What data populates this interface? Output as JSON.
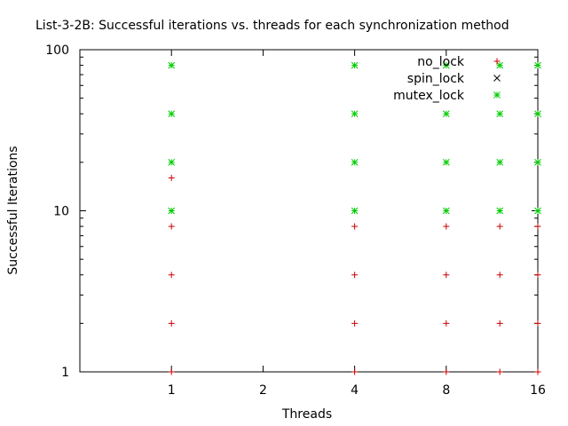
{
  "chart_data": {
    "type": "scatter",
    "title": "List-3-2B: Successful iterations vs. threads for each synchronization method",
    "xlabel": "Threads",
    "ylabel": "Successful Iterations",
    "x_scale": "log2",
    "y_scale": "log10",
    "xlim": [
      0.5,
      16
    ],
    "ylim": [
      1,
      100
    ],
    "xticks": [
      1,
      2,
      4,
      8,
      16
    ],
    "xtick_labels": [
      "1",
      "2",
      "4",
      "8",
      "16"
    ],
    "yticks": [
      1,
      10,
      100
    ],
    "ytick_labels": [
      "1",
      "10",
      "100"
    ],
    "grid": false,
    "legend_position": "top-right",
    "series": [
      {
        "name": "no_lock",
        "marker": "+",
        "color": "#cc0000",
        "points": [
          [
            1,
            1
          ],
          [
            1,
            2
          ],
          [
            1,
            4
          ],
          [
            1,
            8
          ],
          [
            1,
            16
          ],
          [
            4,
            1
          ],
          [
            4,
            2
          ],
          [
            4,
            4
          ],
          [
            4,
            8
          ],
          [
            8,
            1
          ],
          [
            8,
            2
          ],
          [
            8,
            4
          ],
          [
            8,
            8
          ],
          [
            12,
            1
          ],
          [
            12,
            2
          ],
          [
            12,
            4
          ],
          [
            12,
            8
          ],
          [
            16,
            1
          ],
          [
            16,
            2
          ],
          [
            16,
            4
          ],
          [
            16,
            8
          ]
        ]
      },
      {
        "name": "spin_lock",
        "marker": "x",
        "color": "#000000",
        "points": []
      },
      {
        "name": "mutex_lock",
        "marker": "*",
        "color": "#00cc00",
        "points": [
          [
            1,
            10
          ],
          [
            1,
            20
          ],
          [
            1,
            40
          ],
          [
            1,
            80
          ],
          [
            4,
            10
          ],
          [
            4,
            20
          ],
          [
            4,
            40
          ],
          [
            4,
            80
          ],
          [
            8,
            10
          ],
          [
            8,
            20
          ],
          [
            8,
            40
          ],
          [
            8,
            80
          ],
          [
            12,
            10
          ],
          [
            12,
            20
          ],
          [
            12,
            40
          ],
          [
            12,
            80
          ],
          [
            16,
            10
          ],
          [
            16,
            20
          ],
          [
            16,
            40
          ],
          [
            16,
            80
          ]
        ]
      }
    ]
  }
}
